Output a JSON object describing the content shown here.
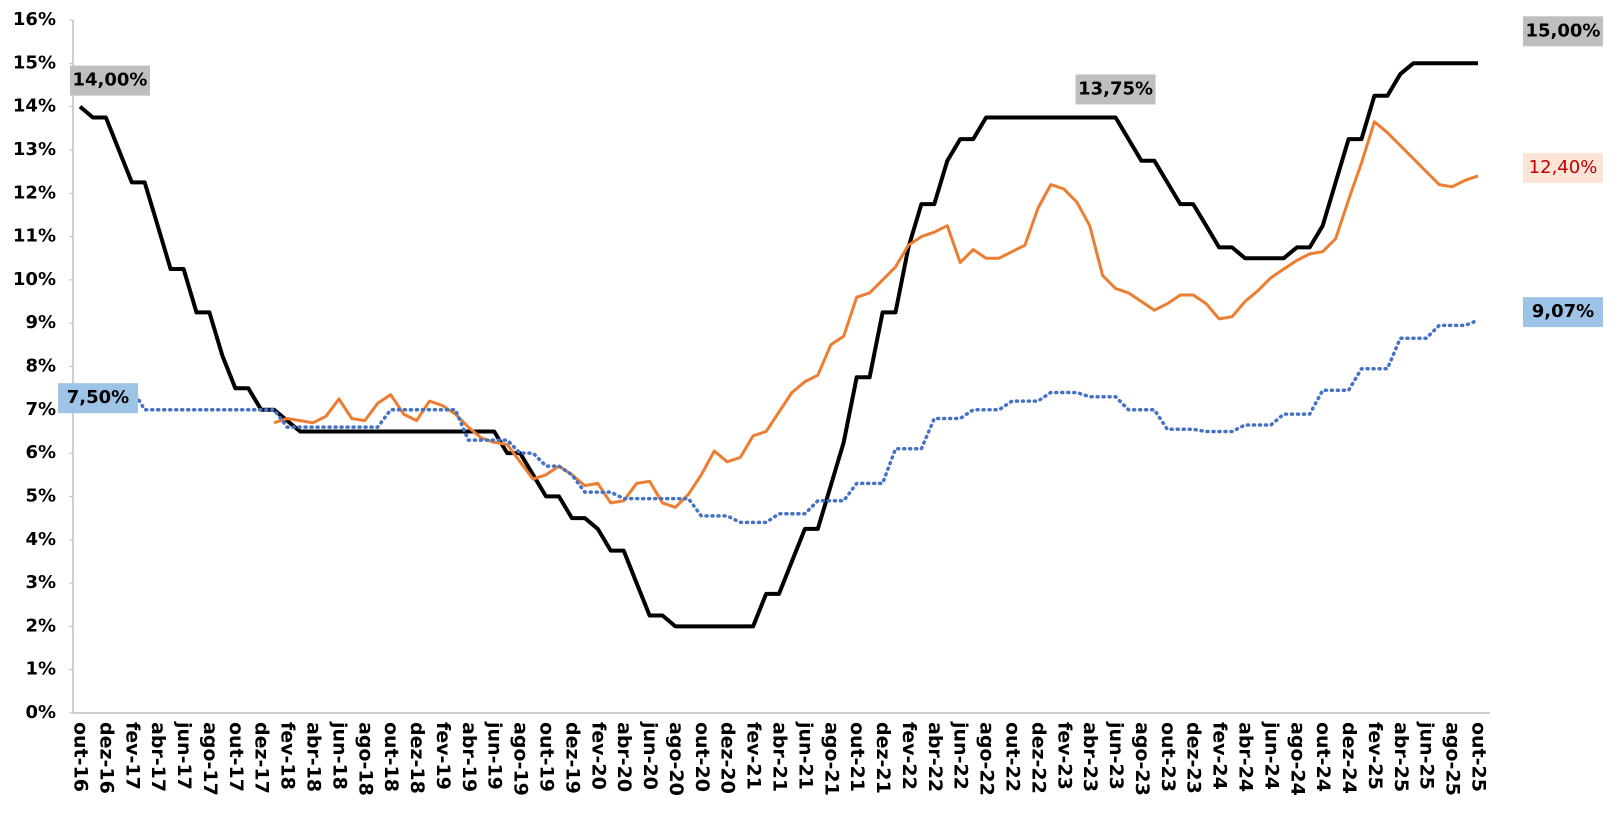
{
  "chart_data": {
    "type": "line",
    "categories": [
      "out-16",
      null,
      "dez-16",
      null,
      "fev-17",
      null,
      "abr-17",
      null,
      "jun-17",
      null,
      "ago-17",
      null,
      "out-17",
      null,
      "dez-17",
      null,
      "fev-18",
      null,
      "abr-18",
      null,
      "jun-18",
      null,
      "ago-18",
      null,
      "out-18",
      null,
      "dez-18",
      null,
      "fev-19",
      null,
      "abr-19",
      null,
      "jun-19",
      null,
      "ago-19",
      null,
      "out-19",
      null,
      "dez-19",
      null,
      "fev-20",
      null,
      "abr-20",
      null,
      "jun-20",
      null,
      "ago-20",
      null,
      "out-20",
      null,
      "dez-20",
      null,
      "fev-21",
      null,
      "abr-21",
      null,
      "jun-21",
      null,
      "ago-21",
      null,
      "out-21",
      null,
      "dez-21",
      null,
      "fev-22",
      null,
      "abr-22",
      null,
      "jun-22",
      null,
      "ago-22",
      null,
      "out-22",
      null,
      "dez-22",
      null,
      "fev-23",
      null,
      "abr-23",
      null,
      "jun-23",
      null,
      "ago-23",
      null,
      "out-23",
      null,
      "dez-23",
      null,
      "fev-24",
      null,
      "abr-24",
      null,
      "jun-24",
      null,
      "ago-24",
      null,
      "out-24",
      null,
      "dez-24",
      null,
      "fev-25",
      null,
      "abr-25",
      null,
      "jun-25",
      null,
      "ago-25",
      null,
      "out-25"
    ],
    "series": [
      {
        "color": "#000000",
        "dash": "solid",
        "label_bg": "#bfbfbf",
        "label_color": "#000000",
        "values": [
          14.0,
          13.75,
          13.75,
          13.0,
          12.25,
          12.25,
          11.25,
          10.25,
          10.25,
          9.25,
          9.25,
          8.25,
          7.5,
          7.5,
          7.0,
          7.0,
          6.75,
          6.5,
          6.5,
          6.5,
          6.5,
          6.5,
          6.5,
          6.5,
          6.5,
          6.5,
          6.5,
          6.5,
          6.5,
          6.5,
          6.5,
          6.5,
          6.5,
          6.0,
          6.0,
          5.5,
          5.0,
          5.0,
          4.5,
          4.5,
          4.25,
          3.75,
          3.75,
          3.0,
          2.25,
          2.25,
          2.0,
          2.0,
          2.0,
          2.0,
          2.0,
          2.0,
          2.0,
          2.75,
          2.75,
          3.5,
          4.25,
          4.25,
          5.25,
          6.25,
          7.75,
          7.75,
          9.25,
          9.25,
          10.75,
          11.75,
          11.75,
          12.75,
          13.25,
          13.25,
          13.75,
          13.75,
          13.75,
          13.75,
          13.75,
          13.75,
          13.75,
          13.75,
          13.75,
          13.75,
          13.75,
          13.25,
          12.75,
          12.75,
          12.25,
          11.75,
          11.75,
          11.25,
          10.75,
          10.75,
          10.5,
          10.5,
          10.5,
          10.5,
          10.75,
          10.75,
          11.25,
          12.25,
          13.25,
          13.25,
          14.25,
          14.25,
          14.75,
          15.0,
          15.0,
          15.0,
          15.0,
          15.0,
          15.0
        ],
        "value_labels": [
          "14,00%",
          null,
          null,
          null,
          null,
          null,
          null,
          null,
          null,
          null,
          null,
          null,
          null,
          null,
          null,
          null,
          null,
          null,
          null,
          null,
          null,
          null,
          null,
          null,
          null,
          null,
          null,
          null,
          null,
          null,
          null,
          null,
          null,
          null,
          null,
          null,
          null,
          null,
          null,
          null,
          null,
          null,
          null,
          null,
          null,
          null,
          null,
          null,
          null,
          null,
          null,
          null,
          null,
          null,
          null,
          null,
          null,
          null,
          null,
          null,
          null,
          null,
          null,
          null,
          null,
          null,
          null,
          null,
          null,
          null,
          null,
          null,
          null,
          null,
          null,
          null,
          null,
          null,
          null,
          null,
          "13,75%",
          null,
          null,
          null,
          null,
          null,
          null,
          null,
          null,
          null,
          null,
          null,
          null,
          null,
          null,
          null,
          null,
          null,
          null,
          null,
          null,
          null,
          null,
          null,
          null,
          null,
          null,
          null,
          "15,00%"
        ]
      },
      {
        "color": "#ed7d31",
        "dash": "solid",
        "label_bg": "#fbe5d6",
        "label_color": "#c00000",
        "values": [
          null,
          null,
          null,
          null,
          null,
          null,
          null,
          null,
          null,
          null,
          null,
          null,
          null,
          null,
          null,
          6.7,
          6.8,
          6.75,
          6.7,
          6.85,
          7.25,
          6.8,
          6.75,
          7.15,
          7.35,
          6.9,
          6.75,
          7.2,
          7.1,
          6.9,
          6.6,
          6.35,
          6.25,
          6.2,
          5.8,
          5.4,
          5.5,
          5.7,
          5.5,
          5.25,
          5.3,
          4.85,
          4.9,
          5.3,
          5.35,
          4.85,
          4.75,
          5.05,
          5.5,
          6.05,
          5.8,
          5.9,
          6.4,
          6.5,
          6.95,
          7.4,
          7.65,
          7.8,
          8.5,
          8.7,
          9.6,
          9.7,
          10.0,
          10.3,
          10.8,
          11.0,
          11.1,
          11.25,
          10.4,
          10.7,
          10.5,
          10.5,
          10.65,
          10.8,
          11.65,
          12.2,
          12.1,
          11.8,
          11.25,
          10.1,
          9.8,
          9.7,
          9.5,
          9.3,
          9.45,
          9.65,
          9.65,
          9.45,
          9.1,
          9.15,
          9.5,
          9.75,
          10.05,
          10.25,
          10.45,
          10.6,
          10.65,
          10.95,
          11.85,
          12.7,
          13.65,
          13.4,
          13.1,
          12.8,
          12.5,
          12.2,
          12.15,
          12.3,
          12.4
        ],
        "value_labels": [
          null,
          null,
          null,
          null,
          null,
          null,
          null,
          null,
          null,
          null,
          null,
          null,
          null,
          null,
          null,
          null,
          null,
          null,
          null,
          null,
          null,
          null,
          null,
          null,
          null,
          null,
          null,
          null,
          null,
          null,
          null,
          null,
          null,
          null,
          null,
          null,
          null,
          null,
          null,
          null,
          null,
          null,
          null,
          null,
          null,
          null,
          null,
          null,
          null,
          null,
          null,
          null,
          null,
          null,
          null,
          null,
          null,
          null,
          null,
          null,
          null,
          null,
          null,
          null,
          null,
          null,
          null,
          null,
          null,
          null,
          null,
          null,
          null,
          null,
          null,
          null,
          null,
          null,
          null,
          null,
          null,
          null,
          null,
          null,
          null,
          null,
          null,
          null,
          null,
          null,
          null,
          null,
          null,
          null,
          null,
          null,
          null,
          null,
          null,
          null,
          null,
          null,
          null,
          null,
          null,
          null,
          null,
          null,
          "12,40%"
        ]
      },
      {
        "color": "#4472c4",
        "dash": "dotted",
        "label_bg": "#9dc3e6",
        "label_color": "#000000",
        "values": [
          7.5,
          7.5,
          7.5,
          7.5,
          7.5,
          7,
          7,
          7,
          7,
          7,
          7,
          7,
          7,
          7,
          7,
          7.0,
          6.6,
          6.6,
          6.6,
          6.6,
          6.6,
          6.6,
          6.6,
          6.6,
          7.0,
          7.0,
          7.0,
          7.0,
          7.0,
          7.0,
          6.3,
          6.3,
          6.3,
          6.3,
          6.0,
          6.0,
          5.7,
          5.7,
          5.5,
          5.1,
          5.1,
          5.1,
          4.95,
          4.95,
          4.95,
          4.95,
          4.95,
          4.95,
          4.55,
          4.55,
          4.55,
          4.4,
          4.4,
          4.4,
          4.6,
          4.6,
          4.6,
          4.9,
          4.9,
          4.9,
          5.3,
          5.3,
          5.3,
          6.1,
          6.1,
          6.1,
          6.8,
          6.8,
          6.8,
          7.0,
          7.0,
          7.0,
          7.2,
          7.2,
          7.2,
          7.4,
          7.4,
          7.4,
          7.3,
          7.3,
          7.3,
          7.0,
          7.0,
          7.0,
          6.55,
          6.55,
          6.55,
          6.5,
          6.5,
          6.5,
          6.65,
          6.65,
          6.65,
          6.9,
          6.9,
          6.9,
          7.45,
          7.45,
          7.45,
          7.95,
          7.95,
          7.95,
          8.65,
          8.65,
          8.65,
          8.95,
          8.95,
          8.95,
          9.07
        ],
        "value_labels": [
          "7,50%",
          null,
          null,
          null,
          null,
          null,
          null,
          null,
          null,
          null,
          null,
          null,
          null,
          null,
          null,
          null,
          null,
          null,
          null,
          null,
          null,
          null,
          null,
          null,
          null,
          null,
          null,
          null,
          null,
          null,
          null,
          null,
          null,
          null,
          null,
          null,
          null,
          null,
          null,
          null,
          null,
          null,
          null,
          null,
          null,
          null,
          null,
          null,
          null,
          null,
          null,
          null,
          null,
          null,
          null,
          null,
          null,
          null,
          null,
          null,
          null,
          null,
          null,
          null,
          null,
          null,
          null,
          null,
          null,
          null,
          null,
          null,
          null,
          null,
          null,
          null,
          null,
          null,
          null,
          null,
          null,
          null,
          null,
          null,
          null,
          null,
          null,
          null,
          null,
          null,
          null,
          null,
          null,
          null,
          null,
          null,
          null,
          null,
          null,
          null,
          null,
          null,
          null,
          null,
          null,
          null,
          null,
          null,
          "9,07%"
        ]
      }
    ],
    "ylim": [
      0,
      16
    ],
    "yticks": [
      {
        "value": 0,
        "label": "0%"
      },
      {
        "value": 1,
        "label": "1%"
      },
      {
        "value": 2,
        "label": "2%"
      },
      {
        "value": 3,
        "label": "3%"
      },
      {
        "value": 4,
        "label": "4%"
      },
      {
        "value": 5,
        "label": "5%"
      },
      {
        "value": 6,
        "label": "6%"
      },
      {
        "value": 7,
        "label": "7%"
      },
      {
        "value": 8,
        "label": "8%"
      },
      {
        "value": 9,
        "label": "9%"
      },
      {
        "value": 10,
        "label": "10%"
      },
      {
        "value": 11,
        "label": "11%"
      },
      {
        "value": 12,
        "label": "12%"
      },
      {
        "value": 13,
        "label": "13%"
      },
      {
        "value": 14,
        "label": "14%"
      },
      {
        "value": 15,
        "label": "15%"
      },
      {
        "value": 16,
        "label": "16%"
      }
    ],
    "grid": false
  }
}
